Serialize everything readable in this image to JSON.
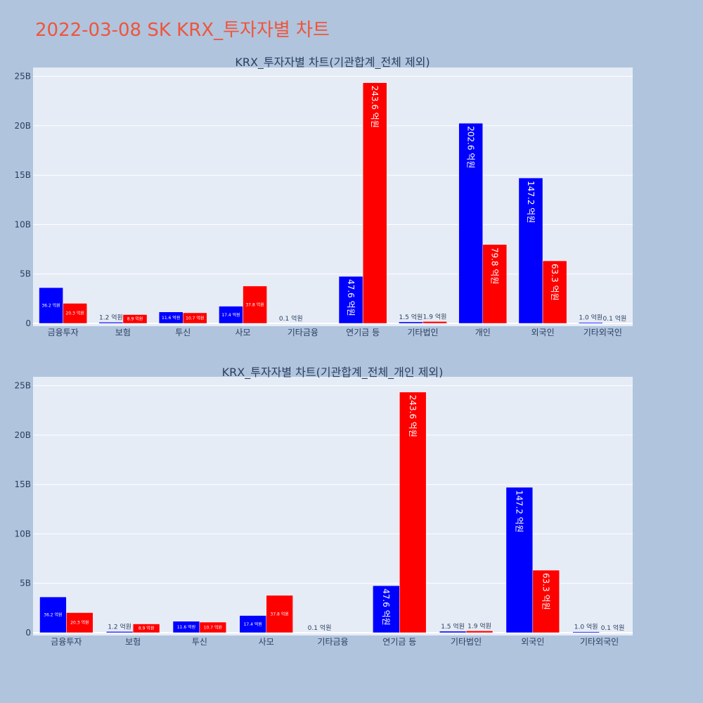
{
  "title": "2022-03-08 SK KRX_투자자별 차트",
  "colors": {
    "buy": "#0000ff",
    "sell": "#ff0000",
    "plot_bg": "#e5ecf6",
    "paper_bg": "#b0c4de",
    "title": "#ef553b",
    "text": "#2a3f5f"
  },
  "chart_data": [
    {
      "type": "bar",
      "title": "KRX_투자자별 차트(기관합계_전체 제외)",
      "xlabel": "",
      "ylabel": "",
      "ylim": [
        0,
        25.9
      ],
      "yticks": [
        0,
        5,
        10,
        15,
        20,
        25
      ],
      "ytick_labels": [
        "0",
        "5B",
        "10B",
        "15B",
        "20B",
        "25B"
      ],
      "categories": [
        "금융투자",
        "보험",
        "투신",
        "사모",
        "기타금융",
        "연기금 등",
        "기타법인",
        "개인",
        "외국인",
        "기타외국인"
      ],
      "series": [
        {
          "color": "#0000ff",
          "values": [
            3.62,
            0.12,
            1.16,
            1.74,
            0.01,
            4.76,
            0.15,
            20.26,
            14.72,
            0.1
          ],
          "labels": [
            "36.2 억원",
            "1.2 억원",
            "11.6 억원",
            "17.4 억원",
            "0.1 억원",
            "47.6 억원",
            "1.5 억원",
            "202.6 억원",
            "147.2 억원",
            "1.0 억원"
          ]
        },
        {
          "color": "#ff0000",
          "values": [
            2.03,
            0.89,
            1.07,
            3.78,
            0,
            24.36,
            0.19,
            7.98,
            6.33,
            0.01
          ],
          "labels": [
            "20.3 억원",
            "8.9 억원",
            "10.7 억원",
            "37.8 억원",
            "",
            "243.6 억원",
            "1.9 억원",
            "79.8 억원",
            "63.3 억원",
            "0.1 억원"
          ]
        }
      ]
    },
    {
      "type": "bar",
      "title": "KRX_투자자별 차트(기관합계_전체_개인 제외)",
      "xlabel": "",
      "ylabel": "",
      "ylim": [
        0,
        25.9
      ],
      "yticks": [
        0,
        5,
        10,
        15,
        20,
        25
      ],
      "ytick_labels": [
        "0",
        "5B",
        "10B",
        "15B",
        "20B",
        "25B"
      ],
      "categories": [
        "금융투자",
        "보험",
        "투신",
        "사모",
        "기타금융",
        "연기금 등",
        "기타법인",
        "외국인",
        "기타외국인"
      ],
      "series": [
        {
          "color": "#0000ff",
          "values": [
            3.62,
            0.12,
            1.16,
            1.74,
            0.01,
            4.76,
            0.15,
            14.72,
            0.1
          ],
          "labels": [
            "36.2 억원",
            "1.2 억원",
            "11.6 억원",
            "17.4 억원",
            "0.1 억원",
            "47.6 억원",
            "1.5 억원",
            "147.2 억원",
            "1.0 억원"
          ]
        },
        {
          "color": "#ff0000",
          "values": [
            2.03,
            0.89,
            1.07,
            3.78,
            0,
            24.36,
            0.19,
            6.33,
            0.01
          ],
          "labels": [
            "20.3 억원",
            "8.9 억원",
            "10.7 억원",
            "37.8 억원",
            "",
            "243.6 억원",
            "1.9 억원",
            "63.3 억원",
            "0.1 억원"
          ]
        }
      ]
    }
  ]
}
